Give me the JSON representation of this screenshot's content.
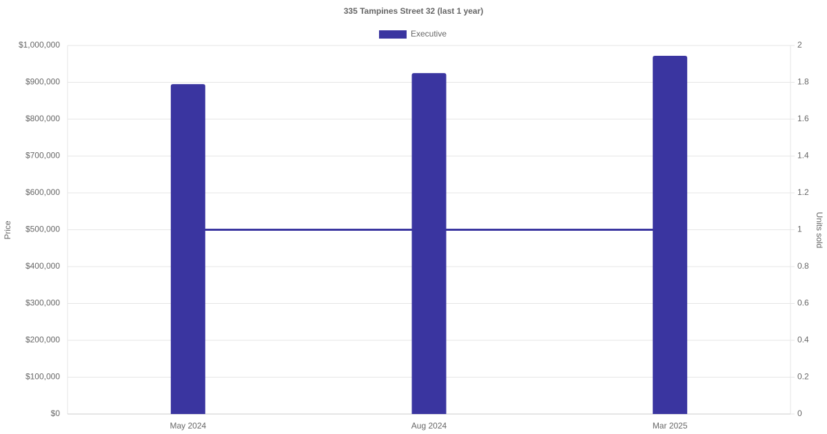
{
  "chart_data": {
    "type": "bar",
    "title": "335 Tampines Street 32 (last 1 year)",
    "y_label": "Price",
    "y2_label": "Units sold",
    "categories": [
      "May 2024",
      "Aug 2024",
      "Mar 2025"
    ],
    "series": [
      {
        "name": "Executive",
        "type": "bar",
        "color": "#3a35a0",
        "values": [
          895000,
          925000,
          972000
        ]
      },
      {
        "type": "line",
        "axis": "y2",
        "color": "#3a35a0",
        "values": [
          1,
          1,
          1
        ]
      }
    ],
    "ylim": [
      0,
      1000000
    ],
    "yticks": [
      {
        "value": 0,
        "label": "$0"
      },
      {
        "value": 100000,
        "label": "$100,000"
      },
      {
        "value": 200000,
        "label": "$200,000"
      },
      {
        "value": 300000,
        "label": "$300,000"
      },
      {
        "value": 400000,
        "label": "$400,000"
      },
      {
        "value": 500000,
        "label": "$500,000"
      },
      {
        "value": 600000,
        "label": "$600,000"
      },
      {
        "value": 700000,
        "label": "$700,000"
      },
      {
        "value": 800000,
        "label": "$800,000"
      },
      {
        "value": 900000,
        "label": "$900,000"
      },
      {
        "value": 1000000,
        "label": "$1,000,000"
      }
    ],
    "y2lim": [
      0,
      2
    ],
    "y2ticks": [
      0,
      0.2,
      0.4,
      0.6,
      0.8,
      1,
      1.2,
      1.4,
      1.6,
      1.8,
      2
    ],
    "grid": true,
    "legend": "top"
  }
}
